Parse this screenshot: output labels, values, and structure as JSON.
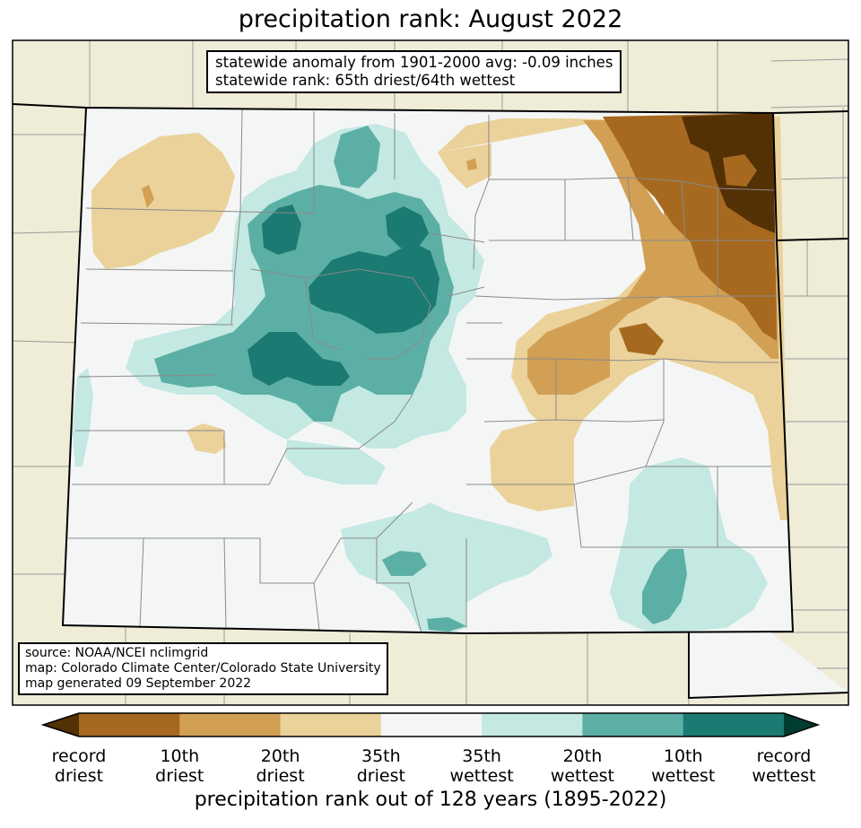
{
  "title": "precipitation rank: August 2022",
  "anomaly_box": {
    "line1": "statewide anomaly from 1901-2000 avg: -0.09 inches",
    "line2": "statewide rank: 65th driest/64th wettest"
  },
  "source_box": {
    "line1": "source: NOAA/NCEI nclimgrid",
    "line2": "map: Colorado Climate Center/Colorado State University",
    "line3": "map generated 09 September 2022"
  },
  "colorbar": {
    "title": "precipitation rank out of 128 years (1895-2022)",
    "ticks": [
      {
        "l1": "record",
        "l2": "driest"
      },
      {
        "l1": "10th",
        "l2": "driest"
      },
      {
        "l1": "20th",
        "l2": "driest"
      },
      {
        "l1": "35th",
        "l2": "driest"
      },
      {
        "l1": "35th",
        "l2": "wettest"
      },
      {
        "l1": "20th",
        "l2": "wettest"
      },
      {
        "l1": "10th",
        "l2": "wettest"
      },
      {
        "l1": "record",
        "l2": "wettest"
      }
    ],
    "colors": {
      "record_driest": "#543005",
      "dry10": "#a6691f",
      "dry20": "#d2a054",
      "dry35": "#ebd29a",
      "normal": "#f4f6f6",
      "wet20": "#c4e8e2",
      "wet10": "#5cafa4",
      "wet_rec": "#1b7a72",
      "record_wettest": "#003c30"
    }
  },
  "map_colors": {
    "outside": "#efecd8",
    "county_lines": "#8a8a8a",
    "state_border": "#000000"
  }
}
